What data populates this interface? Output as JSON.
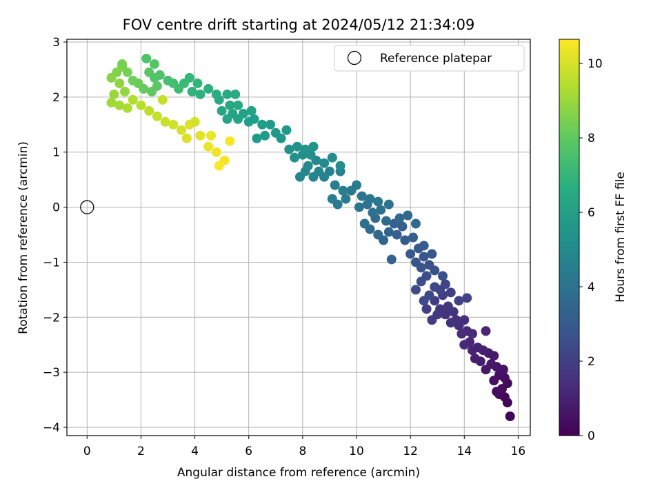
{
  "chart_data": {
    "type": "scatter",
    "title": "FOV centre drift starting at 2024/05/12 21:34:09",
    "xlabel": "Angular distance from reference (arcmin)",
    "ylabel": "Rotation from reference (arcmin)",
    "xlim": [
      -0.75,
      16.45
    ],
    "ylim": [
      -4.15,
      3.05
    ],
    "x_ticks": [
      0,
      2,
      4,
      6,
      8,
      10,
      12,
      14,
      16
    ],
    "y_ticks": [
      -4,
      -3,
      -2,
      -1,
      0,
      1,
      2,
      3
    ],
    "grid": true,
    "legend": {
      "placement": "top-right",
      "entries": [
        {
          "label": "Reference platepar",
          "marker": "open-circle"
        }
      ]
    },
    "reference_point": {
      "x": 0,
      "y": 0
    },
    "colorbar": {
      "label": "Hours from first FF file",
      "colormap": "viridis",
      "range": [
        0,
        10.65
      ],
      "ticks": [
        0,
        2,
        4,
        6,
        8,
        10
      ]
    },
    "series": [
      {
        "points": [
          [
            15.7,
            -3.8,
            0.05
          ],
          [
            15.6,
            -3.55,
            0.1
          ],
          [
            15.5,
            -3.45,
            0.15
          ],
          [
            15.3,
            -3.4,
            0.2
          ],
          [
            15.6,
            -3.2,
            0.25
          ],
          [
            15.4,
            -3.3,
            0.3
          ],
          [
            15.2,
            -3.35,
            0.35
          ],
          [
            15.5,
            -3.1,
            0.4
          ],
          [
            15.3,
            -3.05,
            0.45
          ],
          [
            15.1,
            -3.15,
            0.5
          ],
          [
            15.45,
            -2.95,
            0.55
          ],
          [
            15.2,
            -2.9,
            0.6
          ],
          [
            15.0,
            -2.85,
            0.65
          ],
          [
            14.8,
            -2.95,
            0.7
          ],
          [
            15.1,
            -2.7,
            0.75
          ],
          [
            14.9,
            -2.65,
            0.8
          ],
          [
            14.6,
            -2.8,
            0.85
          ],
          [
            14.4,
            -2.75,
            0.9
          ],
          [
            14.7,
            -2.6,
            0.95
          ],
          [
            14.5,
            -2.55,
            1.0
          ],
          [
            14.3,
            -2.6,
            1.05
          ],
          [
            14.8,
            -2.25,
            1.1
          ],
          [
            14.2,
            -2.45,
            1.15
          ],
          [
            14.0,
            -2.5,
            1.2
          ],
          [
            14.3,
            -2.3,
            1.25
          ],
          [
            14.1,
            -2.25,
            1.3
          ],
          [
            13.9,
            -2.3,
            1.35
          ],
          [
            13.8,
            -2.15,
            1.4
          ],
          [
            14.0,
            -2.05,
            1.45
          ],
          [
            13.7,
            -2.05,
            1.5
          ],
          [
            13.5,
            -2.1,
            1.55
          ],
          [
            13.3,
            -1.95,
            1.6
          ],
          [
            13.6,
            -1.9,
            1.65
          ],
          [
            13.4,
            -1.8,
            1.7
          ],
          [
            13.1,
            -1.85,
            1.75
          ],
          [
            13.0,
            -1.95,
            1.8
          ],
          [
            12.8,
            -2.05,
            1.85
          ],
          [
            12.6,
            -1.85,
            1.9
          ],
          [
            12.9,
            -1.7,
            1.95
          ],
          [
            13.2,
            -1.6,
            2.0
          ],
          [
            13.5,
            -1.55,
            2.05
          ],
          [
            13.8,
            -1.7,
            2.1
          ],
          [
            14.1,
            -1.65,
            2.15
          ],
          [
            13.3,
            -1.4,
            2.2
          ],
          [
            13.1,
            -1.5,
            2.25
          ],
          [
            12.9,
            -1.45,
            2.3
          ],
          [
            12.7,
            -1.6,
            2.35
          ],
          [
            12.5,
            -1.7,
            2.4
          ],
          [
            12.2,
            -1.5,
            2.45
          ],
          [
            12.4,
            -1.35,
            2.5
          ],
          [
            12.6,
            -1.25,
            2.55
          ],
          [
            12.9,
            -1.15,
            2.6
          ],
          [
            13.2,
            -1.25,
            2.65
          ],
          [
            12.7,
            -1.05,
            2.7
          ],
          [
            12.4,
            -1.1,
            2.75
          ],
          [
            12.2,
            -1.0,
            2.8
          ],
          [
            12.5,
            -0.9,
            2.85
          ],
          [
            12.8,
            -0.85,
            2.9
          ],
          [
            12.0,
            -0.85,
            2.95
          ],
          [
            12.3,
            -0.75,
            3.0
          ],
          [
            12.5,
            -0.7,
            3.05
          ],
          [
            11.8,
            -0.6,
            3.1
          ],
          [
            12.1,
            -0.55,
            3.15
          ],
          [
            11.5,
            -0.5,
            3.2
          ],
          [
            11.7,
            -0.35,
            3.25
          ],
          [
            11.4,
            -0.3,
            3.3
          ],
          [
            11.2,
            -0.45,
            3.35
          ],
          [
            11.3,
            -0.95,
            3.4
          ],
          [
            11.0,
            -0.6,
            3.45
          ],
          [
            10.8,
            -0.5,
            3.5
          ],
          [
            11.6,
            -0.2,
            3.55
          ],
          [
            11.9,
            -0.15,
            3.6
          ],
          [
            12.2,
            -0.3,
            3.65
          ],
          [
            11.1,
            -0.25,
            3.7
          ],
          [
            10.7,
            -0.2,
            3.75
          ],
          [
            10.5,
            -0.4,
            3.8
          ],
          [
            10.3,
            -0.3,
            3.85
          ],
          [
            10.6,
            -0.1,
            3.9
          ],
          [
            10.9,
            -0.05,
            3.95
          ],
          [
            11.2,
            0.05,
            4.0
          ],
          [
            10.4,
            0.05,
            4.05
          ],
          [
            10.1,
            0.0,
            4.1
          ],
          [
            10.2,
            0.2,
            4.15
          ],
          [
            10.5,
            0.15,
            4.2
          ],
          [
            10.8,
            0.1,
            4.25
          ],
          [
            9.8,
            0.3,
            4.3
          ],
          [
            10.0,
            0.4,
            4.35
          ],
          [
            9.6,
            0.15,
            4.4
          ],
          [
            9.3,
            0.05,
            4.45
          ],
          [
            9.1,
            0.15,
            4.5
          ],
          [
            9.5,
            0.3,
            4.55
          ],
          [
            9.2,
            0.4,
            4.6
          ],
          [
            9.4,
            0.65,
            4.65
          ],
          [
            9.0,
            0.65,
            4.7
          ],
          [
            8.8,
            0.55,
            4.75
          ],
          [
            8.6,
            0.65,
            4.8
          ],
          [
            8.4,
            0.55,
            4.85
          ],
          [
            8.1,
            0.65,
            4.9
          ],
          [
            7.9,
            0.55,
            4.95
          ],
          [
            8.2,
            0.75,
            5.0
          ],
          [
            8.5,
            0.85,
            5.05
          ],
          [
            8.8,
            0.8,
            5.1
          ],
          [
            9.1,
            0.9,
            5.15
          ],
          [
            9.4,
            0.75,
            5.2
          ],
          [
            8.3,
            0.95,
            5.25
          ],
          [
            8.0,
            0.95,
            5.3
          ],
          [
            7.7,
            0.9,
            5.35
          ],
          [
            7.5,
            1.05,
            5.4
          ],
          [
            7.8,
            1.1,
            5.45
          ],
          [
            8.1,
            1.05,
            5.5
          ],
          [
            8.4,
            1.1,
            5.55
          ],
          [
            7.2,
            1.25,
            5.6
          ],
          [
            7.4,
            1.4,
            5.65
          ],
          [
            7.0,
            1.35,
            5.7
          ],
          [
            6.8,
            1.5,
            5.75
          ],
          [
            6.6,
            1.3,
            5.8
          ],
          [
            6.3,
            1.25,
            5.85
          ],
          [
            6.5,
            1.5,
            5.9
          ],
          [
            6.2,
            1.6,
            5.95
          ],
          [
            6.0,
            1.55,
            6.0
          ],
          [
            5.8,
            1.7,
            6.05
          ],
          [
            6.1,
            1.75,
            6.1
          ],
          [
            5.6,
            1.6,
            6.15
          ],
          [
            5.4,
            1.7,
            6.2
          ],
          [
            5.2,
            1.6,
            6.25
          ],
          [
            5.0,
            1.75,
            6.3
          ],
          [
            5.3,
            1.85,
            6.35
          ],
          [
            5.6,
            1.85,
            6.4
          ],
          [
            4.9,
            1.95,
            6.45
          ],
          [
            5.2,
            2.05,
            6.5
          ],
          [
            5.5,
            2.05,
            6.55
          ],
          [
            4.8,
            2.05,
            6.6
          ],
          [
            4.5,
            2.15,
            6.7
          ],
          [
            4.2,
            2.05,
            6.8
          ],
          [
            3.9,
            2.1,
            6.9
          ],
          [
            4.1,
            2.25,
            7.0
          ],
          [
            3.8,
            2.35,
            7.1
          ],
          [
            3.6,
            2.25,
            7.2
          ],
          [
            3.4,
            2.15,
            7.3
          ],
          [
            3.2,
            2.25,
            7.4
          ],
          [
            3.0,
            2.3,
            7.5
          ],
          [
            2.7,
            2.4,
            7.6
          ],
          [
            2.5,
            2.35,
            7.7
          ],
          [
            2.3,
            2.45,
            7.8
          ],
          [
            2.6,
            2.2,
            7.9
          ],
          [
            2.4,
            2.1,
            8.0
          ],
          [
            2.1,
            2.15,
            8.1
          ],
          [
            1.9,
            2.25,
            8.2
          ],
          [
            1.7,
            2.3,
            8.3
          ],
          [
            1.5,
            2.45,
            8.4
          ],
          [
            1.3,
            2.55,
            8.5
          ],
          [
            1.1,
            2.45,
            8.6
          ],
          [
            0.9,
            2.35,
            8.7
          ],
          [
            1.2,
            2.25,
            8.8
          ],
          [
            1.4,
            2.1,
            8.9
          ],
          [
            1.0,
            2.05,
            9.0
          ],
          [
            0.9,
            1.9,
            9.1
          ],
          [
            1.2,
            1.85,
            9.2
          ],
          [
            1.5,
            1.8,
            9.3
          ],
          [
            1.7,
            1.95,
            9.4
          ],
          [
            2.0,
            1.85,
            9.5
          ],
          [
            2.3,
            1.75,
            9.6
          ],
          [
            2.6,
            1.65,
            9.7
          ],
          [
            2.9,
            1.55,
            9.8
          ],
          [
            3.2,
            1.5,
            9.9
          ],
          [
            3.5,
            1.4,
            10.0
          ],
          [
            3.8,
            1.5,
            10.1
          ],
          [
            4.2,
            1.3,
            10.2
          ],
          [
            4.5,
            1.1,
            10.3
          ],
          [
            4.8,
            1.0,
            10.4
          ],
          [
            5.1,
            0.85,
            10.5
          ],
          [
            4.9,
            0.75,
            10.6
          ],
          [
            5.3,
            1.2,
            10.55
          ],
          [
            2.8,
            1.95,
            9.75
          ],
          [
            2.2,
            2.7,
            7.65
          ],
          [
            2.5,
            2.6,
            7.75
          ],
          [
            1.3,
            2.6,
            8.45
          ],
          [
            4.0,
            1.55,
            9.95
          ],
          [
            3.7,
            1.25,
            10.05
          ],
          [
            4.6,
            1.3,
            10.35
          ]
        ]
      }
    ]
  }
}
